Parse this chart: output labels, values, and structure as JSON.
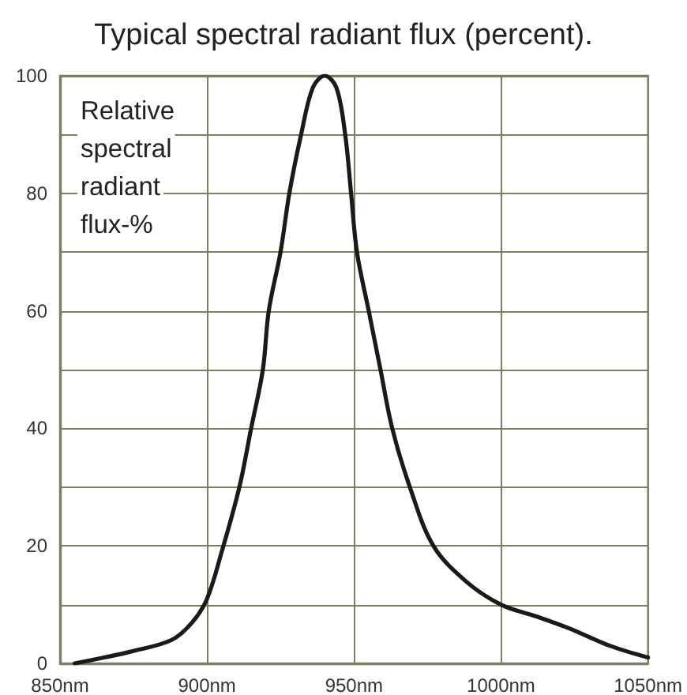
{
  "chart_data": {
    "type": "line",
    "title": "Typical spectral radiant flux (percent).",
    "ylabel": "Relative spectral radiant flux-%",
    "x": [
      855,
      865,
      874,
      888,
      895,
      900,
      905,
      911,
      915,
      919,
      921,
      925,
      928,
      932,
      936,
      940,
      944,
      947,
      949,
      951,
      955,
      959,
      963,
      969,
      977,
      988,
      1000,
      1012,
      1023,
      1037,
      1050
    ],
    "values": [
      0,
      1,
      2,
      4,
      7,
      11,
      19,
      30,
      40,
      50,
      60,
      70,
      80,
      90,
      98,
      100,
      98,
      90,
      80,
      70,
      60,
      50,
      40,
      30,
      20,
      14,
      10,
      8,
      6,
      3,
      1
    ],
    "color": "#1a1a1a",
    "xlim": [
      850,
      1050
    ],
    "xticks": [
      {
        "value": 850,
        "label": "850nm"
      },
      {
        "value": 900,
        "label": "900nm"
      },
      {
        "value": 950,
        "label": "950nm"
      },
      {
        "value": 1000,
        "label": "1000nm"
      },
      {
        "value": 1050,
        "label": "1050nm"
      }
    ],
    "ylim": [
      0,
      100
    ],
    "yticks": [
      0,
      {
        "value": 10,
        "label": null
      },
      20,
      {
        "value": 30,
        "label": null
      },
      40,
      {
        "value": 50,
        "label": null
      },
      60,
      {
        "value": 70,
        "label": null
      },
      80,
      {
        "value": 90,
        "label": null
      },
      100
    ],
    "grid": true,
    "marker": "none",
    "line_style": "solid"
  }
}
